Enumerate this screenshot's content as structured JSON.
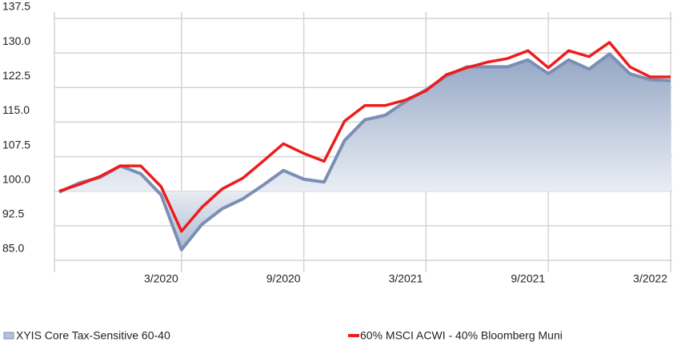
{
  "chart_data": {
    "type": "line",
    "categories": [
      null,
      null,
      null,
      null,
      null,
      null,
      "3/2020",
      null,
      null,
      null,
      null,
      null,
      "9/2020",
      null,
      null,
      null,
      null,
      null,
      "3/2021",
      null,
      null,
      null,
      null,
      null,
      "9/2021",
      null,
      null,
      null,
      null,
      null,
      "3/2022"
    ],
    "series": [
      {
        "name": "XYIS Core Tax-Sensitive 60-40",
        "color": "#7b8fb5",
        "fill": "area",
        "values": [
          99.8,
          101.8,
          103,
          105.5,
          103.8,
          99.2,
          87.3,
          92.8,
          96.2,
          98.3,
          101.3,
          104.5,
          102.6,
          102,
          111,
          115.5,
          116.5,
          119.5,
          122,
          125,
          127,
          127,
          127,
          128.5,
          125.5,
          128.5,
          126.5,
          129.8,
          125.5,
          124.2,
          124
        ]
      },
      {
        "name": "60% MSCI ACWI - 40% Bloomberg Muni",
        "color": "#ee1c1c",
        "values": [
          100,
          101.5,
          103.2,
          105.5,
          105.5,
          101,
          91.3,
          96.5,
          100.5,
          102.8,
          106.5,
          110.3,
          108.2,
          106.5,
          115.2,
          118.6,
          118.6,
          119.8,
          121.8,
          125.3,
          126.8,
          128,
          128.8,
          130.5,
          126.8,
          130.5,
          129.2,
          132.3,
          127,
          124.8,
          124.8
        ]
      }
    ],
    "ylim": [
      85,
      137.5
    ],
    "yticks": [
      {
        "value": 85,
        "label": "85.0"
      },
      {
        "value": 92.5,
        "label": "92.5"
      },
      {
        "value": 100,
        "label": "100.0"
      },
      {
        "value": 107.5,
        "label": "107.5"
      },
      {
        "value": 115,
        "label": "115.0"
      },
      {
        "value": 122.5,
        "label": "122.5"
      },
      {
        "value": 130,
        "label": "130.0"
      },
      {
        "value": 137.5,
        "label": "137.5"
      }
    ],
    "baseline": 100,
    "grid": true
  }
}
